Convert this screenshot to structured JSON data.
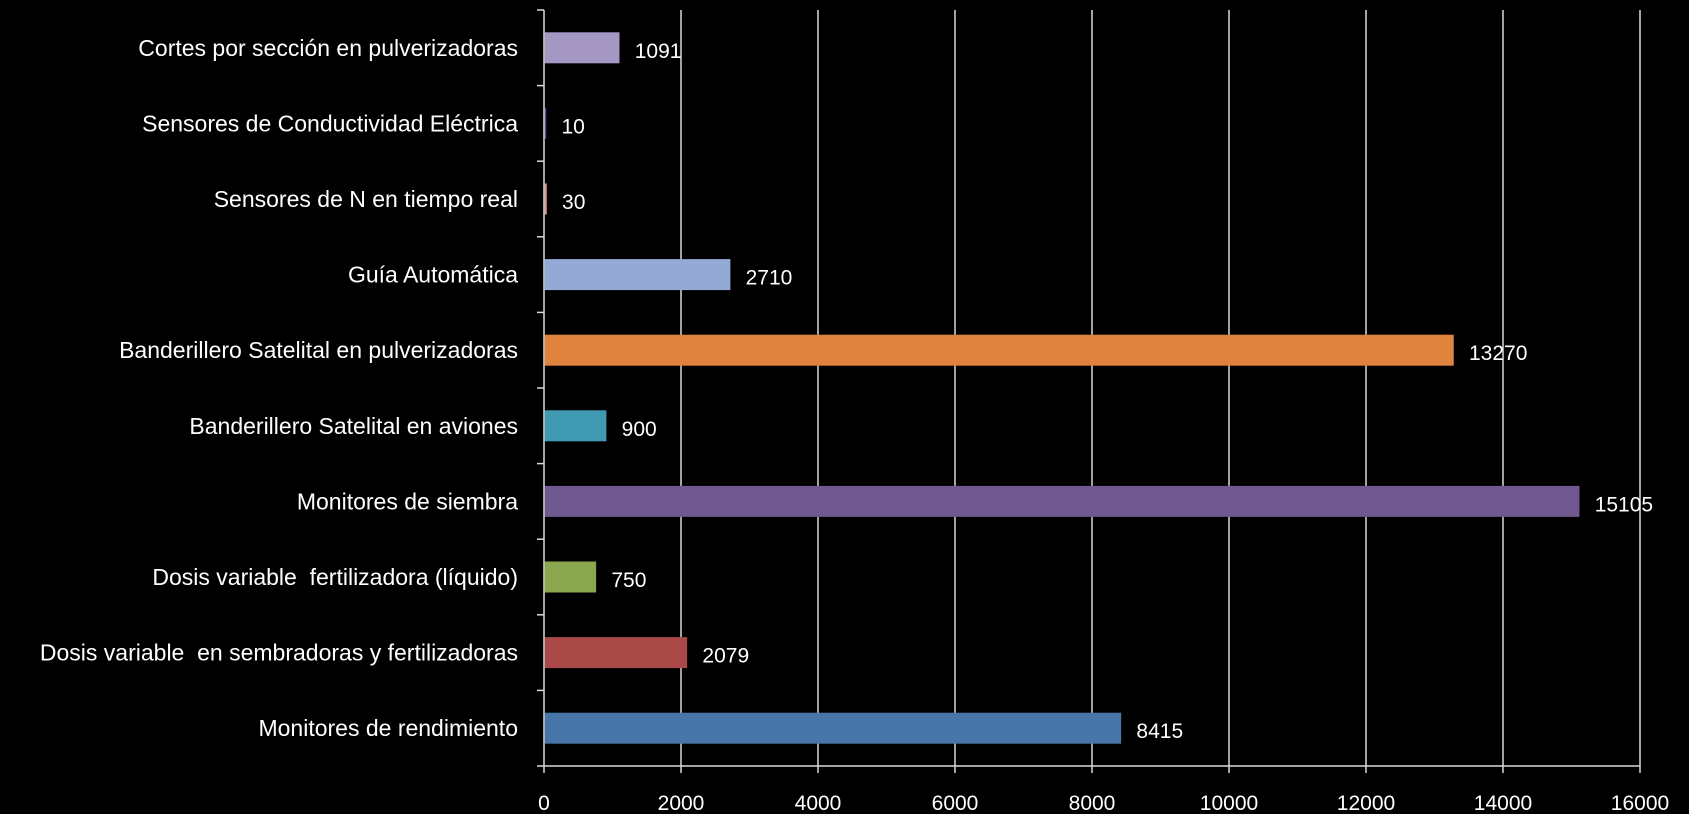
{
  "chart_data": {
    "type": "bar",
    "orientation": "horizontal",
    "categories": [
      "Cortes por sección en pulverizadoras",
      "Sensores de Conductividad Eléctrica",
      "Sensores de N en tiempo real",
      "Guía Automática",
      "Banderillero Satelital en pulverizadoras",
      "Banderillero Satelital en aviones",
      "Monitores de siembra",
      "Dosis variable  fertilizadora (líquido)",
      "Dosis variable  en sembradoras y fertilizadoras",
      "Monitores de rendimiento"
    ],
    "values": [
      1091,
      10,
      30,
      2710,
      13270,
      900,
      15105,
      750,
      2079,
      8415
    ],
    "data_labels": [
      "1091",
      "10",
      "30",
      "2710",
      "13270",
      "900",
      "15105",
      "750",
      "2079",
      "8415"
    ],
    "colors": [
      "#a497c4",
      "#5b4a86",
      "#d9928d",
      "#94a9d6",
      "#e0833e",
      "#3f9ab2",
      "#705891",
      "#8aa74e",
      "#a94a48",
      "#4875a8"
    ],
    "xlim": [
      0,
      16000
    ],
    "xticks": [
      "0",
      "2000",
      "4000",
      "6000",
      "8000",
      "10000",
      "12000",
      "14000",
      "16000"
    ],
    "grid": "vertical",
    "background": "#000000",
    "text_color": "#ffffff",
    "gridline_color": "#d9d9d9"
  }
}
